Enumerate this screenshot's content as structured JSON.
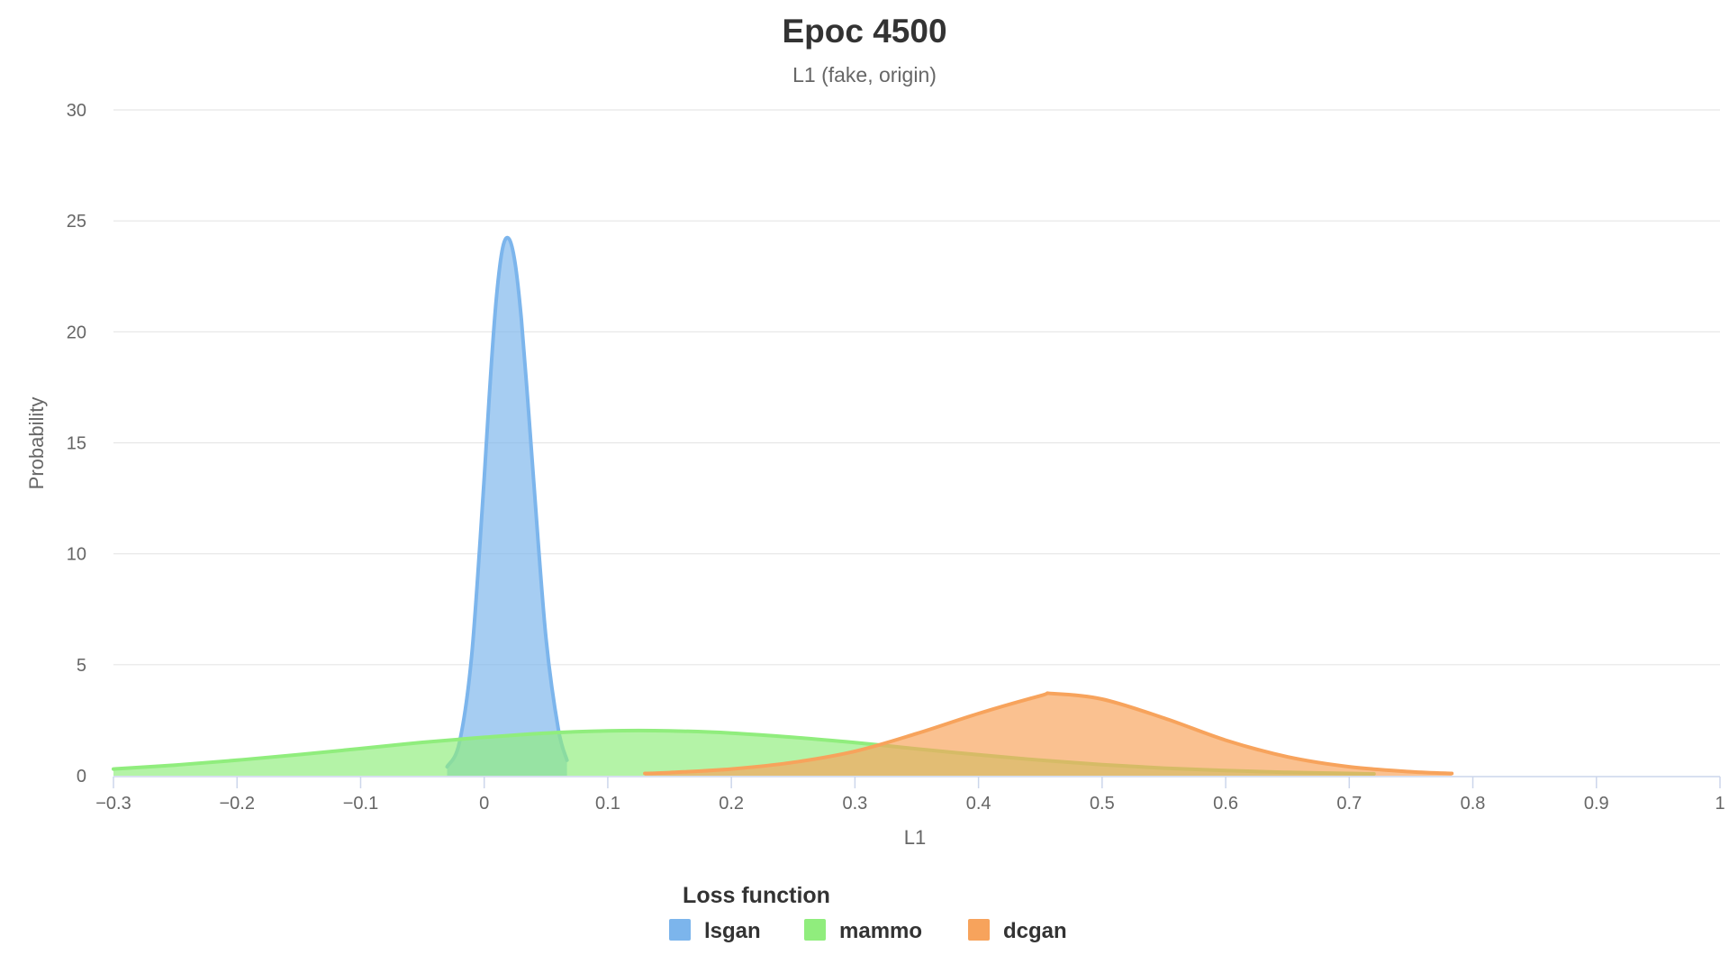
{
  "chart_data": {
    "type": "area",
    "title": "Epoc 4500",
    "subtitle": "L1 (fake, origin)",
    "xlabel": "L1",
    "ylabel": "Probability",
    "xlim": [
      -0.3,
      1
    ],
    "ylim": [
      0,
      30
    ],
    "xticks": [
      "−0.3",
      "−0.2",
      "−0.1",
      "0",
      "0.1",
      "0.2",
      "0.3",
      "0.4",
      "0.5",
      "0.6",
      "0.7",
      "0.8",
      "0.9",
      "1"
    ],
    "yticks": [
      "0",
      "5",
      "10",
      "15",
      "20",
      "25",
      "30"
    ],
    "grid": true,
    "legend": {
      "title": "Loss function",
      "position": "bottom-center"
    },
    "series": [
      {
        "name": "lsgan",
        "color": "#7cb5ec",
        "x": [
          -0.03,
          -0.02,
          -0.01,
          0.0,
          0.005,
          0.01,
          0.015,
          0.02,
          0.025,
          0.03,
          0.035,
          0.04,
          0.05,
          0.06,
          0.067
        ],
        "y": [
          0.4,
          1.5,
          5.5,
          13.4,
          17.9,
          21.6,
          23.8,
          24.2,
          23.1,
          20.6,
          17.1,
          13.3,
          6.2,
          2.1,
          0.7
        ]
      },
      {
        "name": "mammo",
        "color": "#90ed7d",
        "x": [
          -0.3,
          -0.25,
          -0.2,
          -0.15,
          -0.1,
          -0.05,
          0.0,
          0.05,
          0.1,
          0.15,
          0.2,
          0.25,
          0.3,
          0.35,
          0.4,
          0.45,
          0.5,
          0.55,
          0.6,
          0.65,
          0.7,
          0.72
        ],
        "y": [
          0.3,
          0.48,
          0.7,
          0.95,
          1.22,
          1.5,
          1.73,
          1.92,
          2.02,
          2.02,
          1.92,
          1.73,
          1.49,
          1.21,
          0.94,
          0.7,
          0.5,
          0.34,
          0.23,
          0.15,
          0.1,
          0.08
        ]
      },
      {
        "name": "dcgan",
        "color": "#f7a35c",
        "x": [
          0.13,
          0.15,
          0.2,
          0.25,
          0.3,
          0.35,
          0.4,
          0.45,
          0.46,
          0.5,
          0.55,
          0.6,
          0.65,
          0.7,
          0.75,
          0.783
        ],
        "y": [
          0.1,
          0.14,
          0.3,
          0.6,
          1.1,
          1.9,
          2.8,
          3.6,
          3.7,
          3.45,
          2.6,
          1.6,
          0.85,
          0.4,
          0.18,
          0.1
        ]
      }
    ]
  }
}
